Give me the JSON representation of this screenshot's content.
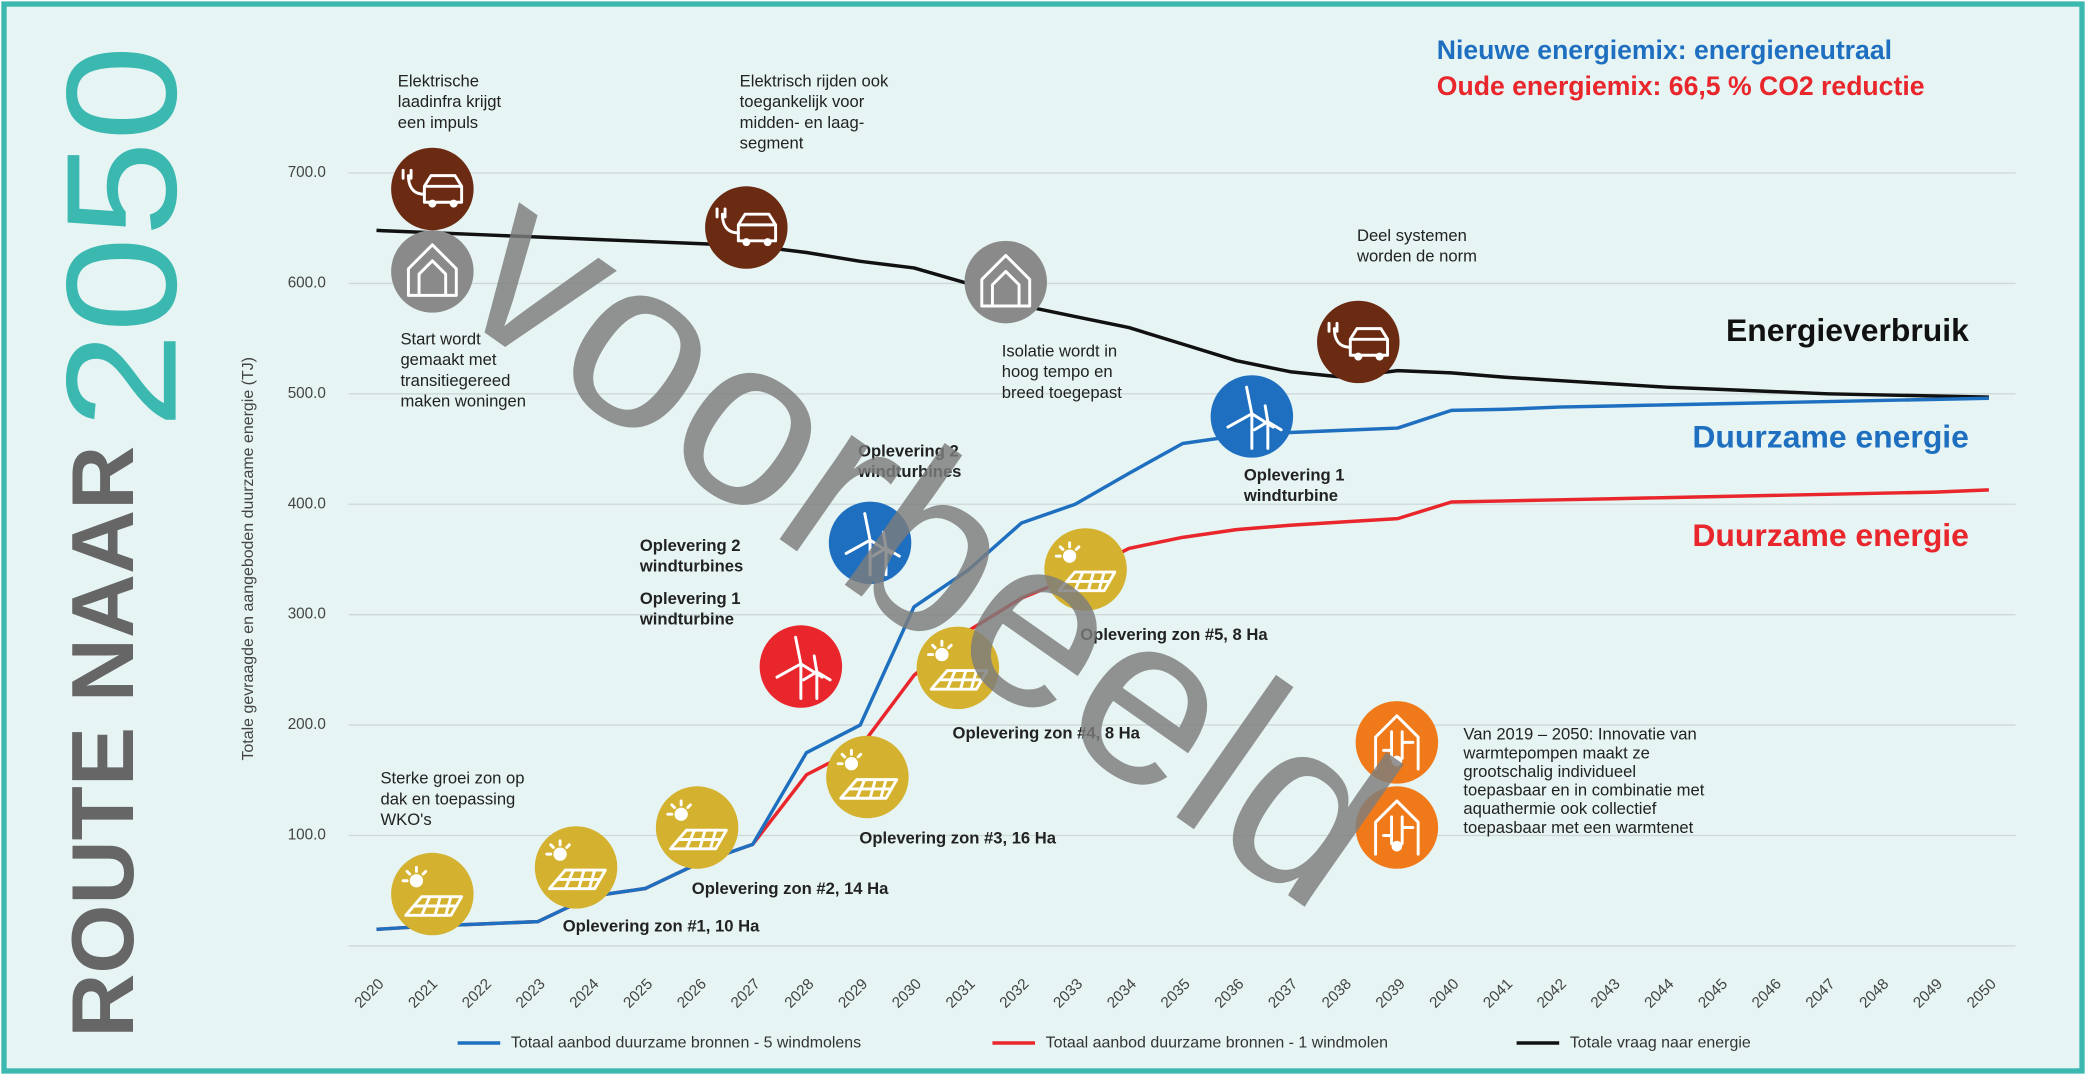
{
  "chart_data": {
    "type": "line",
    "title": "ROUTE NAAR",
    "subtitle": "2050",
    "ylabel": "Totale gevraagde en aangeboden duurzame energie (TJ)",
    "watermark": "voorbeeld",
    "grid": true,
    "categories": [
      "2020",
      "2021",
      "2022",
      "2023",
      "2024",
      "2025",
      "2026",
      "2027",
      "2028",
      "2029",
      "2030",
      "2031",
      "2032",
      "2033",
      "2034",
      "2035",
      "2036",
      "2037",
      "2038",
      "2039",
      "2040",
      "2041",
      "2042",
      "2043",
      "2044",
      "2045",
      "2046",
      "2047",
      "2048",
      "2049",
      "2050"
    ],
    "ylim": [
      0,
      750
    ],
    "yticks": [
      {
        "value": 100,
        "label": "100.0"
      },
      {
        "value": 200,
        "label": "200.0"
      },
      {
        "value": 300,
        "label": "300.0"
      },
      {
        "value": 400,
        "label": "400.0"
      },
      {
        "value": 500,
        "label": "500.0"
      },
      {
        "value": 600,
        "label": "600.0"
      },
      {
        "value": 700,
        "label": "700.0"
      }
    ],
    "series": [
      {
        "name": "Totaal aanbod duurzame bronnen - 5 windmolens",
        "end_label": "Duurzame energie",
        "color": "#1f6fc0",
        "values": [
          15,
          18,
          20,
          22,
          45,
          52,
          75,
          92,
          175,
          200,
          307,
          340,
          383,
          400,
          428,
          455,
          462,
          465,
          467,
          469,
          485,
          486,
          488,
          489,
          490,
          491,
          492,
          493,
          494,
          495,
          496
        ]
      },
      {
        "name": "Totaal aanbod duurzame bronnen - 1 windmolen",
        "end_label": "Duurzame energie",
        "color": "#e8262b",
        "values": [
          15,
          18,
          20,
          22,
          45,
          52,
          75,
          92,
          155,
          180,
          245,
          285,
          315,
          335,
          360,
          370,
          377,
          381,
          384,
          387,
          402,
          403,
          404,
          405,
          406,
          407,
          408,
          409,
          410,
          411,
          413
        ]
      },
      {
        "name": "Totale vraag naar energie",
        "end_label": "Energieverbruik",
        "color": "#111111",
        "values": [
          648,
          646,
          644,
          642,
          640,
          638,
          636,
          634,
          628,
          620,
          614,
          600,
          580,
          570,
          560,
          545,
          530,
          520,
          515,
          521,
          519,
          515,
          512,
          509,
          506,
          504,
          502,
          500,
          499,
          498,
          497
        ]
      }
    ],
    "mix_legend": [
      {
        "text": "Nieuwe energiemix: energieneutraal",
        "color": "#1f6fc0"
      },
      {
        "text": "Oude energiemix: 66,5 % CO2 reductie",
        "color": "#e8262b"
      }
    ],
    "annotations": [
      {
        "lines": [
          "Elektrische",
          "laadinfra krijgt",
          "een impuls"
        ]
      },
      {
        "lines": [
          "Elektrisch rijden ook",
          "toegankelijk voor",
          "midden- en laag-",
          "segment"
        ]
      },
      {
        "lines": [
          "Start wordt",
          "gemaakt met",
          "transitiegereed",
          "maken woningen"
        ]
      },
      {
        "lines": [
          "Isolatie wordt in",
          "hoog tempo en",
          "breed toegepast"
        ]
      },
      {
        "lines": [
          "Deel systemen",
          "worden de norm"
        ]
      },
      {
        "lines": [
          "Oplevering 2",
          "windturbines"
        ],
        "color": "#1f6fc0"
      },
      {
        "lines": [
          "Oplevering 1",
          "windturbine"
        ],
        "color": "#1f6fc0"
      },
      {
        "lines": [
          "Oplevering 2",
          "windturbines"
        ],
        "color": "#1f6fc0"
      },
      {
        "lines": [
          "Oplevering 1",
          "windturbine"
        ],
        "color": "#e8262b"
      },
      {
        "lines": [
          "Sterke groei zon op",
          "dak en toepassing",
          "WKO's"
        ]
      },
      {
        "lines": [
          "Oplevering zon #1, 10 Ha"
        ]
      },
      {
        "lines": [
          "Oplevering zon #2, 14 Ha"
        ]
      },
      {
        "lines": [
          "Oplevering zon #3, 16 Ha"
        ]
      },
      {
        "lines": [
          "Oplevering zon #4, 8 Ha"
        ]
      },
      {
        "lines": [
          "Oplevering zon #5, 8 Ha"
        ]
      },
      {
        "lines": [
          "Van 2019 – 2050: Innovatie van",
          "warmtepompen maakt ze",
          "grootschalig individueel",
          "toepasbaar en in combinatie met",
          "aquathermie ook collectief",
          "toepasbaar met een warmtenet"
        ]
      }
    ]
  }
}
